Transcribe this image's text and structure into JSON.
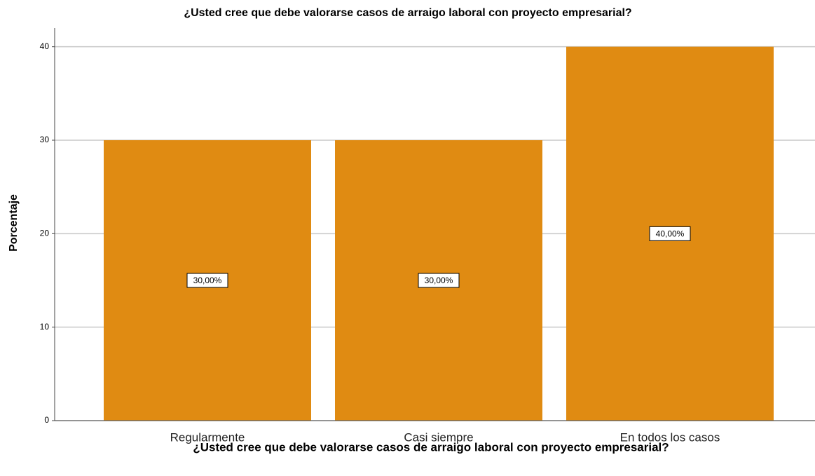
{
  "chart_data": {
    "type": "bar",
    "title": "¿Usted cree que debe valorarse casos de arraigo laboral con proyecto empresarial?",
    "x_label": "¿Usted cree que debe valorarse casos de arraigo laboral con proyecto empresarial?",
    "y_label": "Porcentaje",
    "categories": [
      "Regularmente",
      "Casi siempre",
      "En todos los casos"
    ],
    "values": [
      30,
      30,
      40
    ],
    "value_labels": [
      "30,00%",
      "30,00%",
      "40,00%"
    ],
    "color": "#e08b12",
    "ylim": [
      0,
      42
    ],
    "yticks": [
      0,
      10,
      20,
      30,
      40
    ],
    "grid": true
  }
}
